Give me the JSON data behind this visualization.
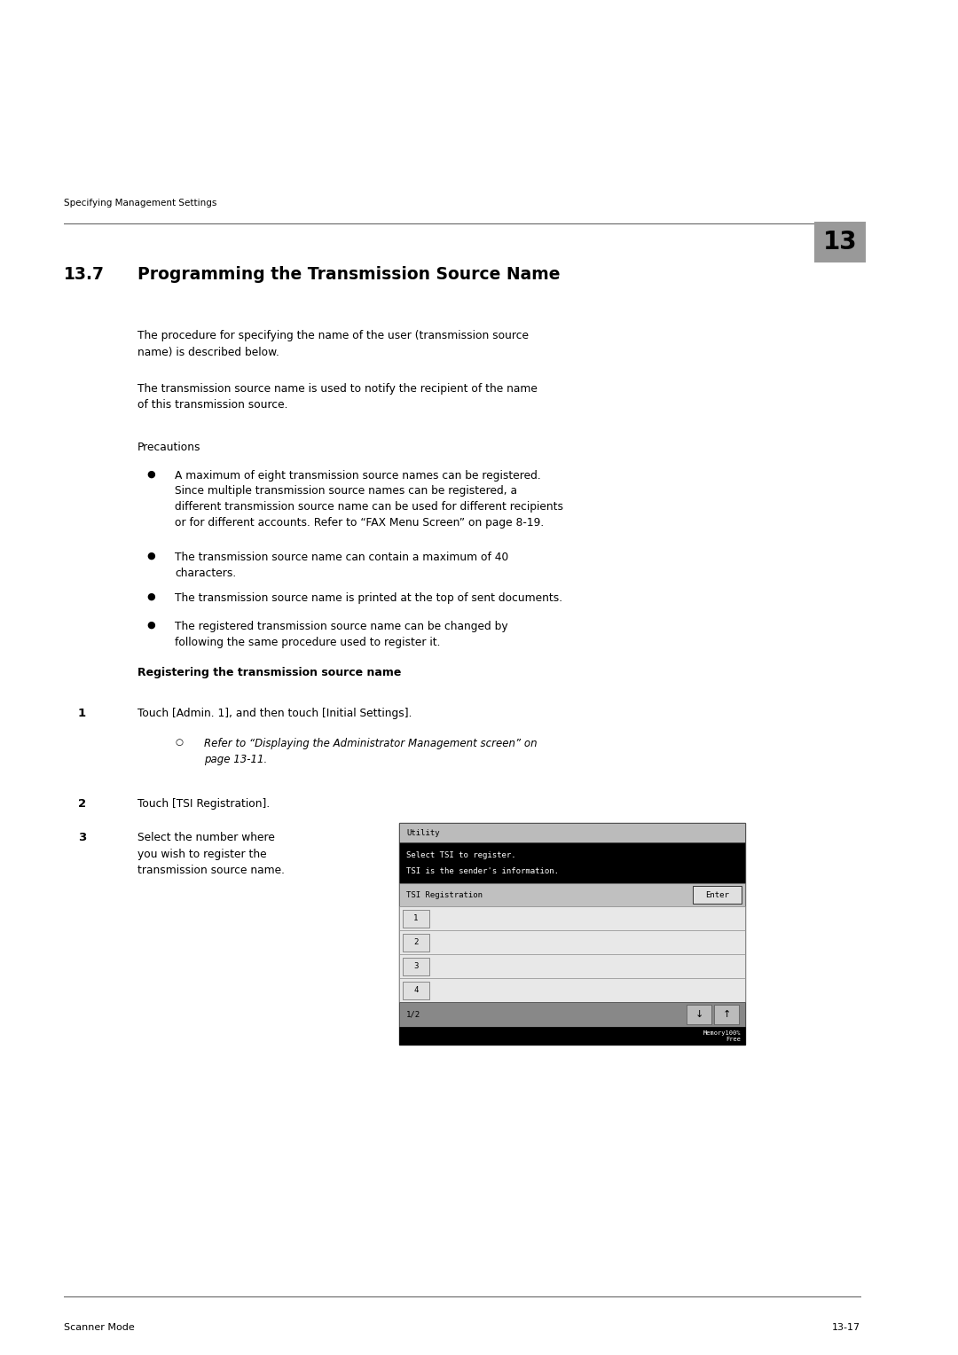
{
  "page_width": 10.8,
  "page_height": 15.28,
  "dpi": 100,
  "bg_color": "#ffffff",
  "header_text": "Specifying Management Settings",
  "header_chapter": "13",
  "chapter_bg": "#999999",
  "title_number": "13.7",
  "title_text": "Programming the Transmission Source Name",
  "body_indent": 1.55,
  "para1": "The procedure for specifying the name of the user (transmission source\nname) is described below.",
  "para2": "The transmission source name is used to notify the recipient of the name\nof this transmission source.",
  "precautions_label": "Precautions",
  "bullets": [
    "A maximum of eight transmission source names can be registered.\nSince multiple transmission source names can be registered, a\ndifferent transmission source name can be used for different recipients\nor for different accounts. Refer to “FAX Menu Screen” on page 8-19.",
    "The transmission source name can contain a maximum of 40\ncharacters.",
    "The transmission source name is printed at the top of sent documents.",
    "The registered transmission source name can be changed by\nfollowing the same procedure used to register it."
  ],
  "reg_heading": "Registering the transmission source name",
  "step1": "Touch [Admin. 1], and then touch [Initial Settings].",
  "step1_sub": "Refer to “Displaying the Administrator Management screen” on\npage 13-11.",
  "step2": "Touch [TSI Registration].",
  "step3_text": "Select the number where\nyou wish to register the\ntransmission source name.",
  "footer_left": "Scanner Mode",
  "footer_right": "13-17",
  "screen": {
    "title_bar": "Utility",
    "highlight_line1": "Select TSI to register.",
    "highlight_line2": "TSI is the sender's information.",
    "reg_label": "TSI Registration",
    "enter_btn": "Enter",
    "rows": [
      "1",
      "2",
      "3",
      "4"
    ],
    "page_indicator": "1/2"
  }
}
